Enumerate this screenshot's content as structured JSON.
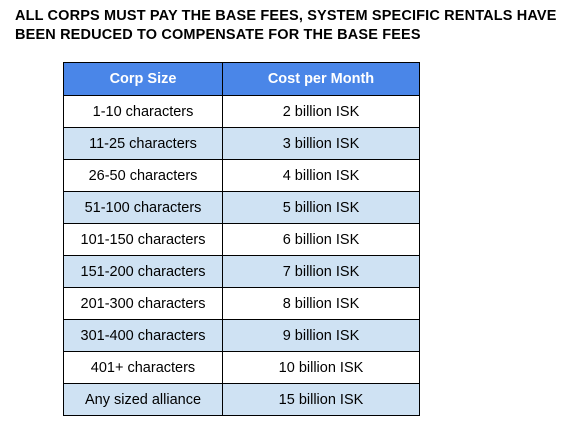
{
  "notice": {
    "line1": "ALL CORPS MUST PAY THE BASE FEES, SYSTEM SPECIFIC RENTALS HAVE",
    "line2": "BEEN REDUCED TO COMPENSATE FOR THE BASE FEES"
  },
  "table": {
    "header_color": "#4a86e8",
    "stripe_color": "#cfe2f3",
    "columns": [
      "Corp Size",
      "Cost per Month"
    ],
    "rows": [
      [
        "1-10 characters",
        "2 billion ISK"
      ],
      [
        "11-25 characters",
        "3 billion ISK"
      ],
      [
        "26-50 characters",
        "4 billion ISK"
      ],
      [
        "51-100 characters",
        "5 billion ISK"
      ],
      [
        "101-150 characters",
        "6 billion ISK"
      ],
      [
        "151-200 characters",
        "7 billion ISK"
      ],
      [
        "201-300 characters",
        "8 billion ISK"
      ],
      [
        "301-400 characters",
        "9 billion ISK"
      ],
      [
        "401+ characters",
        "10 billion ISK"
      ],
      [
        "Any sized alliance",
        "15 billion ISK"
      ]
    ]
  }
}
